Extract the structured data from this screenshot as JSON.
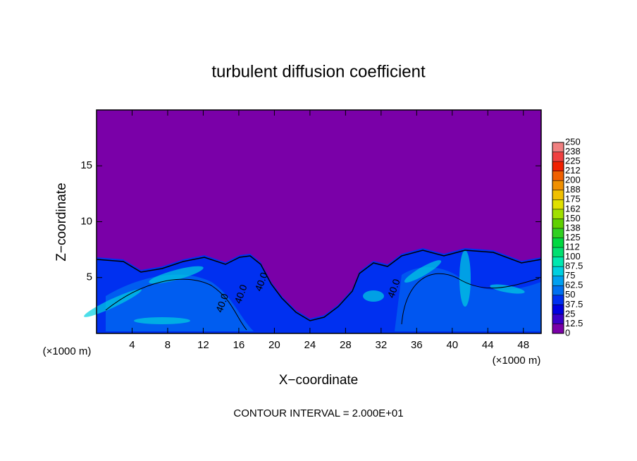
{
  "chart_data": {
    "type": "contour",
    "title": "turbulent diffusion coefficient",
    "x_label": "X−coordinate",
    "y_label": "Z−coordinate",
    "x_unit": "(×1000 m)",
    "footer": "CONTOUR INTERVAL = 2.000E+01",
    "xlim": [
      0,
      50
    ],
    "ylim": [
      0,
      20
    ],
    "xticks": [
      4,
      8,
      12,
      16,
      20,
      24,
      28,
      32,
      36,
      40,
      44,
      48
    ],
    "yticks": [
      5,
      10,
      15
    ],
    "contour_labels": [
      {
        "text": "40.0",
        "x": 14.2,
        "y": 2.7
      },
      {
        "text": "40.0",
        "x": 16.3,
        "y": 3.5
      },
      {
        "text": "40.0",
        "x": 18.6,
        "y": 4.6
      },
      {
        "text": "40.0",
        "x": 33.5,
        "y": 4.0
      }
    ],
    "colorbar": {
      "lim": [
        0,
        250
      ],
      "ticks": [
        0,
        12.5,
        25,
        37.5,
        50,
        62.5,
        75,
        87.5,
        100,
        {
          "value": 112.5,
          "label": "112"
        },
        125,
        {
          "value": 137.5,
          "label": "138"
        },
        150,
        {
          "value": 162.5,
          "label": "162"
        },
        175,
        {
          "value": 187.5,
          "label": "188"
        },
        200,
        {
          "value": 212.5,
          "label": "212"
        },
        225,
        {
          "value": 237.5,
          "label": "238"
        },
        250
      ],
      "colors": [
        "#7a00a8",
        "#3a00c8",
        "#0000e0",
        "#0030f0",
        "#0070f0",
        "#00a0f0",
        "#00d0e0",
        "#00e8b0",
        "#00e070",
        "#00d840",
        "#30d020",
        "#60d000",
        "#a0e000",
        "#e0e000",
        "#f0c000",
        "#f09000",
        "#f06000",
        "#f02000",
        "#f04040",
        "#f08080"
      ]
    }
  }
}
